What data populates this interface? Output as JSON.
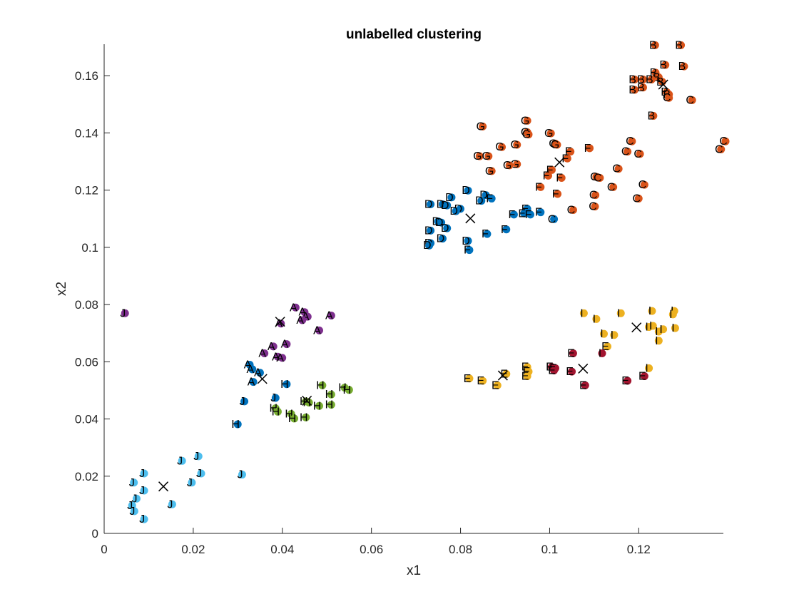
{
  "chart_data": {
    "type": "scatter",
    "title": "unlabelled clustering",
    "xlabel": "x1",
    "ylabel": "x2",
    "xlim": [
      0,
      0.139
    ],
    "ylim": [
      0,
      0.171
    ],
    "xticks": [
      0,
      0.02,
      0.04,
      0.06,
      0.08,
      0.1,
      0.12
    ],
    "xtick_labels": [
      "0",
      "0.02",
      "0.04",
      "0.06",
      "0.08",
      "0.1",
      "0.12"
    ],
    "yticks": [
      0,
      0.02,
      0.04,
      0.06,
      0.08,
      0.1,
      0.12,
      0.14,
      0.16
    ],
    "ytick_labels": [
      "0",
      "0.02",
      "0.04",
      "0.06",
      "0.08",
      "0.1",
      "0.12",
      "0.14",
      "0.16"
    ],
    "grid": false,
    "cluster_colors": [
      "#0072bd",
      "#d95319",
      "#edb120",
      "#7e2f8e",
      "#77ac30",
      "#4dbeee",
      "#a2142f"
    ],
    "points": [
      {
        "x": 0.1232,
        "y": 0.1709,
        "label": "B",
        "cluster": 1
      },
      {
        "x": 0.129,
        "y": 0.1709,
        "label": "B",
        "cluster": 1
      },
      {
        "x": 0.1255,
        "y": 0.164,
        "label": "B",
        "cluster": 1
      },
      {
        "x": 0.1297,
        "y": 0.1635,
        "label": "B",
        "cluster": 1
      },
      {
        "x": 0.1233,
        "y": 0.1613,
        "label": "B",
        "cluster": 1
      },
      {
        "x": 0.124,
        "y": 0.1597,
        "label": "B",
        "cluster": 1
      },
      {
        "x": 0.1186,
        "y": 0.1589,
        "label": "B",
        "cluster": 1
      },
      {
        "x": 0.1205,
        "y": 0.1589,
        "label": "B",
        "cluster": 1
      },
      {
        "x": 0.1224,
        "y": 0.1589,
        "label": "B",
        "cluster": 1
      },
      {
        "x": 0.1248,
        "y": 0.1581,
        "label": "B",
        "cluster": 1
      },
      {
        "x": 0.1205,
        "y": 0.1561,
        "label": "B",
        "cluster": 1
      },
      {
        "x": 0.1186,
        "y": 0.1553,
        "label": "B",
        "cluster": 1
      },
      {
        "x": 0.1258,
        "y": 0.1545,
        "label": "B",
        "cluster": 1
      },
      {
        "x": 0.1263,
        "y": 0.1537,
        "label": "B",
        "cluster": 1
      },
      {
        "x": 0.1263,
        "y": 0.1525,
        "label": "C",
        "cluster": 1
      },
      {
        "x": 0.1315,
        "y": 0.1517,
        "label": "C",
        "cluster": 1
      },
      {
        "x": 0.1228,
        "y": 0.1462,
        "label": "B",
        "cluster": 1
      },
      {
        "x": 0.139,
        "y": 0.1373,
        "label": "C",
        "cluster": 1
      },
      {
        "x": 0.138,
        "y": 0.1345,
        "label": "C",
        "cluster": 1
      },
      {
        "x": 0.118,
        "y": 0.1373,
        "label": "C",
        "cluster": 1
      },
      {
        "x": 0.117,
        "y": 0.1337,
        "label": "C",
        "cluster": 1
      },
      {
        "x": 0.1198,
        "y": 0.1329,
        "label": "C",
        "cluster": 1
      },
      {
        "x": 0.115,
        "y": 0.1277,
        "label": "C",
        "cluster": 1
      },
      {
        "x": 0.11,
        "y": 0.1249,
        "label": "C",
        "cluster": 1
      },
      {
        "x": 0.1108,
        "y": 0.1245,
        "label": "C",
        "cluster": 1
      },
      {
        "x": 0.1208,
        "y": 0.1221,
        "label": "C",
        "cluster": 1
      },
      {
        "x": 0.1138,
        "y": 0.1213,
        "label": "C",
        "cluster": 1
      },
      {
        "x": 0.1098,
        "y": 0.1185,
        "label": "C",
        "cluster": 1
      },
      {
        "x": 0.1195,
        "y": 0.1173,
        "label": "C",
        "cluster": 1
      },
      {
        "x": 0.1048,
        "y": 0.1133,
        "label": "C",
        "cluster": 1
      },
      {
        "x": 0.1097,
        "y": 0.1145,
        "label": "C",
        "cluster": 1
      },
      {
        "x": 0.0945,
        "y": 0.1445,
        "label": "G",
        "cluster": 1
      },
      {
        "x": 0.0945,
        "y": 0.1405,
        "label": "G",
        "cluster": 1
      },
      {
        "x": 0.0948,
        "y": 0.1397,
        "label": "G",
        "cluster": 1
      },
      {
        "x": 0.0998,
        "y": 0.1401,
        "label": "G",
        "cluster": 1
      },
      {
        "x": 0.0845,
        "y": 0.1425,
        "label": "G",
        "cluster": 1
      },
      {
        "x": 0.1008,
        "y": 0.1365,
        "label": "G",
        "cluster": 1
      },
      {
        "x": 0.1012,
        "y": 0.1361,
        "label": "G",
        "cluster": 1
      },
      {
        "x": 0.0922,
        "y": 0.1361,
        "label": "G",
        "cluster": 1
      },
      {
        "x": 0.0888,
        "y": 0.1353,
        "label": "G",
        "cluster": 1
      },
      {
        "x": 0.1042,
        "y": 0.1337,
        "label": "F",
        "cluster": 1
      },
      {
        "x": 0.1085,
        "y": 0.1349,
        "label": "F",
        "cluster": 1
      },
      {
        "x": 0.0838,
        "y": 0.1321,
        "label": "G",
        "cluster": 1
      },
      {
        "x": 0.0858,
        "y": 0.1321,
        "label": "G",
        "cluster": 1
      },
      {
        "x": 0.0922,
        "y": 0.1293,
        "label": "G",
        "cluster": 1
      },
      {
        "x": 0.0905,
        "y": 0.1289,
        "label": "G",
        "cluster": 1
      },
      {
        "x": 0.0865,
        "y": 0.1269,
        "label": "G",
        "cluster": 1
      },
      {
        "x": 0.1035,
        "y": 0.1313,
        "label": "F",
        "cluster": 1
      },
      {
        "x": 0.1,
        "y": 0.1273,
        "label": "F",
        "cluster": 1
      },
      {
        "x": 0.0992,
        "y": 0.1253,
        "label": "F",
        "cluster": 1
      },
      {
        "x": 0.1022,
        "y": 0.1245,
        "label": "F",
        "cluster": 1
      },
      {
        "x": 0.0975,
        "y": 0.1213,
        "label": "F",
        "cluster": 1
      },
      {
        "x": 0.1013,
        "y": 0.1189,
        "label": "F",
        "cluster": 1
      },
      {
        "x": 0.0812,
        "y": 0.1201,
        "label": "D",
        "cluster": 0
      },
      {
        "x": 0.0852,
        "y": 0.1185,
        "label": "D",
        "cluster": 0
      },
      {
        "x": 0.0865,
        "y": 0.1173,
        "label": "F",
        "cluster": 0
      },
      {
        "x": 0.0775,
        "y": 0.1177,
        "label": "D",
        "cluster": 0
      },
      {
        "x": 0.0842,
        "y": 0.1165,
        "label": "D",
        "cluster": 0
      },
      {
        "x": 0.0728,
        "y": 0.1153,
        "label": "D",
        "cluster": 0
      },
      {
        "x": 0.0755,
        "y": 0.1153,
        "label": "D",
        "cluster": 0
      },
      {
        "x": 0.0765,
        "y": 0.1149,
        "label": "D",
        "cluster": 0
      },
      {
        "x": 0.0795,
        "y": 0.1137,
        "label": "D",
        "cluster": 0
      },
      {
        "x": 0.0785,
        "y": 0.1129,
        "label": "D",
        "cluster": 0
      },
      {
        "x": 0.0945,
        "y": 0.1137,
        "label": "E",
        "cluster": 0
      },
      {
        "x": 0.0975,
        "y": 0.1125,
        "label": "F",
        "cluster": 0
      },
      {
        "x": 0.0915,
        "y": 0.1117,
        "label": "F",
        "cluster": 0
      },
      {
        "x": 0.0938,
        "y": 0.1121,
        "label": "E",
        "cluster": 0
      },
      {
        "x": 0.0952,
        "y": 0.1117,
        "label": "F",
        "cluster": 0
      },
      {
        "x": 0.1005,
        "y": 0.1101,
        "label": "C",
        "cluster": 0
      },
      {
        "x": 0.0745,
        "y": 0.1093,
        "label": "D",
        "cluster": 0
      },
      {
        "x": 0.0752,
        "y": 0.1089,
        "label": "D",
        "cluster": 0
      },
      {
        "x": 0.0765,
        "y": 0.1069,
        "label": "D",
        "cluster": 0
      },
      {
        "x": 0.0728,
        "y": 0.1061,
        "label": "D",
        "cluster": 0
      },
      {
        "x": 0.0898,
        "y": 0.1065,
        "label": "F",
        "cluster": 0
      },
      {
        "x": 0.0855,
        "y": 0.1049,
        "label": "F",
        "cluster": 0
      },
      {
        "x": 0.0755,
        "y": 0.1033,
        "label": "D",
        "cluster": 0
      },
      {
        "x": 0.0812,
        "y": 0.1025,
        "label": "D",
        "cluster": 0
      },
      {
        "x": 0.0728,
        "y": 0.1017,
        "label": "D",
        "cluster": 0
      },
      {
        "x": 0.0725,
        "y": 0.1009,
        "label": "D",
        "cluster": 0
      },
      {
        "x": 0.0815,
        "y": 0.0993,
        "label": "F",
        "cluster": 0
      },
      {
        "x": 0.1072,
        "y": 0.0772,
        "label": "I",
        "cluster": 2
      },
      {
        "x": 0.11,
        "y": 0.0752,
        "label": "I",
        "cluster": 2
      },
      {
        "x": 0.1155,
        "y": 0.0772,
        "label": "I",
        "cluster": 2
      },
      {
        "x": 0.1225,
        "y": 0.078,
        "label": "I",
        "cluster": 2
      },
      {
        "x": 0.1275,
        "y": 0.078,
        "label": "I",
        "cluster": 2
      },
      {
        "x": 0.1272,
        "y": 0.0768,
        "label": "I",
        "cluster": 2
      },
      {
        "x": 0.1218,
        "y": 0.0724,
        "label": "I",
        "cluster": 2
      },
      {
        "x": 0.1227,
        "y": 0.0728,
        "label": "I",
        "cluster": 2
      },
      {
        "x": 0.124,
        "y": 0.0708,
        "label": "I",
        "cluster": 2
      },
      {
        "x": 0.125,
        "y": 0.0716,
        "label": "I",
        "cluster": 2
      },
      {
        "x": 0.1277,
        "y": 0.072,
        "label": "I",
        "cluster": 2
      },
      {
        "x": 0.1117,
        "y": 0.07,
        "label": "I",
        "cluster": 2
      },
      {
        "x": 0.114,
        "y": 0.0696,
        "label": "I",
        "cluster": 2
      },
      {
        "x": 0.124,
        "y": 0.0676,
        "label": "I",
        "cluster": 2
      },
      {
        "x": 0.1125,
        "y": 0.0656,
        "label": "E",
        "cluster": 2
      },
      {
        "x": 0.1218,
        "y": 0.058,
        "label": "I",
        "cluster": 2
      },
      {
        "x": 0.0945,
        "y": 0.0584,
        "label": "E",
        "cluster": 2
      },
      {
        "x": 0.0948,
        "y": 0.0568,
        "label": "E",
        "cluster": 2
      },
      {
        "x": 0.0898,
        "y": 0.056,
        "label": "E",
        "cluster": 2
      },
      {
        "x": 0.0945,
        "y": 0.0552,
        "label": "E",
        "cluster": 2
      },
      {
        "x": 0.0815,
        "y": 0.0544,
        "label": "E",
        "cluster": 2
      },
      {
        "x": 0.0845,
        "y": 0.0536,
        "label": "E",
        "cluster": 2
      },
      {
        "x": 0.0878,
        "y": 0.052,
        "label": "E",
        "cluster": 2
      },
      {
        "x": 0.1,
        "y": 0.0584,
        "label": "E",
        "cluster": 6
      },
      {
        "x": 0.1008,
        "y": 0.058,
        "label": "E",
        "cluster": 6
      },
      {
        "x": 0.1005,
        "y": 0.0572,
        "label": "E",
        "cluster": 6
      },
      {
        "x": 0.1048,
        "y": 0.0632,
        "label": "E",
        "cluster": 6
      },
      {
        "x": 0.1113,
        "y": 0.0632,
        "label": "I",
        "cluster": 6
      },
      {
        "x": 0.1045,
        "y": 0.0568,
        "label": "E",
        "cluster": 6
      },
      {
        "x": 0.1208,
        "y": 0.0552,
        "label": "E",
        "cluster": 6
      },
      {
        "x": 0.117,
        "y": 0.0536,
        "label": "E",
        "cluster": 6
      },
      {
        "x": 0.1075,
        "y": 0.052,
        "label": "E",
        "cluster": 6
      },
      {
        "x": 0.0425,
        "y": 0.0792,
        "label": "A",
        "cluster": 3
      },
      {
        "x": 0.0445,
        "y": 0.0776,
        "label": "A",
        "cluster": 3
      },
      {
        "x": 0.0505,
        "y": 0.0764,
        "label": "A",
        "cluster": 3
      },
      {
        "x": 0.0452,
        "y": 0.076,
        "label": "A",
        "cluster": 3
      },
      {
        "x": 0.044,
        "y": 0.0748,
        "label": "A",
        "cluster": 3
      },
      {
        "x": 0.0392,
        "y": 0.0736,
        "label": "A",
        "cluster": 3
      },
      {
        "x": 0.0478,
        "y": 0.0712,
        "label": "A",
        "cluster": 3
      },
      {
        "x": 0.0042,
        "y": 0.0772,
        "label": "J",
        "cluster": 3
      },
      {
        "x": 0.0405,
        "y": 0.0664,
        "label": "A",
        "cluster": 3
      },
      {
        "x": 0.0375,
        "y": 0.0656,
        "label": "A",
        "cluster": 3
      },
      {
        "x": 0.0355,
        "y": 0.0632,
        "label": "A",
        "cluster": 3
      },
      {
        "x": 0.0385,
        "y": 0.062,
        "label": "A",
        "cluster": 3
      },
      {
        "x": 0.0395,
        "y": 0.0616,
        "label": "A",
        "cluster": 3
      },
      {
        "x": 0.0322,
        "y": 0.0592,
        "label": "A",
        "cluster": 0
      },
      {
        "x": 0.0328,
        "y": 0.0576,
        "label": "A",
        "cluster": 0
      },
      {
        "x": 0.0345,
        "y": 0.0564,
        "label": "A",
        "cluster": 0
      },
      {
        "x": 0.033,
        "y": 0.0532,
        "label": "A",
        "cluster": 0
      },
      {
        "x": 0.0405,
        "y": 0.0524,
        "label": "H",
        "cluster": 0
      },
      {
        "x": 0.038,
        "y": 0.0476,
        "label": "J",
        "cluster": 0
      },
      {
        "x": 0.031,
        "y": 0.0464,
        "label": "J",
        "cluster": 0
      },
      {
        "x": 0.0295,
        "y": 0.0384,
        "label": "H",
        "cluster": 0
      },
      {
        "x": 0.0485,
        "y": 0.052,
        "label": "H",
        "cluster": 4
      },
      {
        "x": 0.0535,
        "y": 0.0512,
        "label": "H",
        "cluster": 4
      },
      {
        "x": 0.0545,
        "y": 0.0504,
        "label": "H",
        "cluster": 4
      },
      {
        "x": 0.0505,
        "y": 0.0488,
        "label": "H",
        "cluster": 4
      },
      {
        "x": 0.0448,
        "y": 0.0464,
        "label": "H",
        "cluster": 4
      },
      {
        "x": 0.0455,
        "y": 0.046,
        "label": "H",
        "cluster": 4
      },
      {
        "x": 0.0478,
        "y": 0.0448,
        "label": "H",
        "cluster": 4
      },
      {
        "x": 0.0505,
        "y": 0.0452,
        "label": "H",
        "cluster": 4
      },
      {
        "x": 0.038,
        "y": 0.044,
        "label": "H",
        "cluster": 4
      },
      {
        "x": 0.0385,
        "y": 0.0428,
        "label": "H",
        "cluster": 4
      },
      {
        "x": 0.0415,
        "y": 0.042,
        "label": "H",
        "cluster": 4
      },
      {
        "x": 0.0422,
        "y": 0.0404,
        "label": "H",
        "cluster": 4
      },
      {
        "x": 0.0448,
        "y": 0.0408,
        "label": "H",
        "cluster": 4
      },
      {
        "x": 0.0207,
        "y": 0.0272,
        "label": "J",
        "cluster": 5
      },
      {
        "x": 0.017,
        "y": 0.0256,
        "label": "J",
        "cluster": 5
      },
      {
        "x": 0.0085,
        "y": 0.0212,
        "label": "J",
        "cluster": 5
      },
      {
        "x": 0.0213,
        "y": 0.0212,
        "label": "J",
        "cluster": 5
      },
      {
        "x": 0.0305,
        "y": 0.0208,
        "label": "J",
        "cluster": 5
      },
      {
        "x": 0.0062,
        "y": 0.018,
        "label": "J",
        "cluster": 5
      },
      {
        "x": 0.0192,
        "y": 0.018,
        "label": "J",
        "cluster": 5
      },
      {
        "x": 0.0085,
        "y": 0.0152,
        "label": "J",
        "cluster": 5
      },
      {
        "x": 0.0068,
        "y": 0.0124,
        "label": "J",
        "cluster": 5
      },
      {
        "x": 0.0058,
        "y": 0.01,
        "label": "J",
        "cluster": 5
      },
      {
        "x": 0.0148,
        "y": 0.0104,
        "label": "J",
        "cluster": 5
      },
      {
        "x": 0.0063,
        "y": 0.008,
        "label": "J",
        "cluster": 5
      },
      {
        "x": 0.0085,
        "y": 0.0052,
        "label": "J",
        "cluster": 5
      }
    ],
    "centroids": [
      {
        "x": 0.1255,
        "y": 0.1569
      },
      {
        "x": 0.1022,
        "y": 0.1297
      },
      {
        "x": 0.0822,
        "y": 0.1101
      },
      {
        "x": 0.1195,
        "y": 0.072
      },
      {
        "x": 0.1075,
        "y": 0.0576
      },
      {
        "x": 0.0895,
        "y": 0.0552
      },
      {
        "x": 0.0395,
        "y": 0.074
      },
      {
        "x": 0.0355,
        "y": 0.054
      },
      {
        "x": 0.0455,
        "y": 0.0464
      },
      {
        "x": 0.0133,
        "y": 0.0164
      }
    ]
  }
}
